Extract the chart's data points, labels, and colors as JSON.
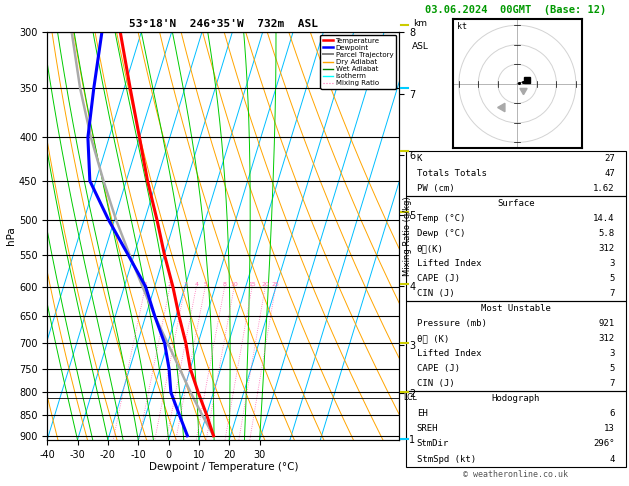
{
  "title_left": "53°18'N  246°35'W  732m  ASL",
  "title_right": "03.06.2024  00GMT  (Base: 12)",
  "xlabel": "Dewpoint / Temperature (°C)",
  "bg_color": "#ffffff",
  "pressure_levels": [
    300,
    350,
    400,
    450,
    500,
    550,
    600,
    650,
    700,
    750,
    800,
    850,
    900
  ],
  "pressure_ticks": [
    300,
    350,
    400,
    450,
    500,
    550,
    600,
    650,
    700,
    750,
    800,
    850,
    900
  ],
  "temp_ticks": [
    -40,
    -30,
    -20,
    -10,
    0,
    10,
    20,
    30
  ],
  "isotherm_color": "#00bfff",
  "dry_adiabat_color": "#ffa500",
  "wet_adiabat_color": "#00cc00",
  "mixing_ratio_color": "#ff69b4",
  "temperature_profile": {
    "pressure": [
      900,
      850,
      800,
      750,
      700,
      650,
      600,
      550,
      500,
      450,
      400,
      350,
      300
    ],
    "temp": [
      14.4,
      10.0,
      5.0,
      0.0,
      -4.0,
      -9.0,
      -14.0,
      -20.0,
      -26.0,
      -33.0,
      -40.0,
      -48.0,
      -57.0
    ],
    "color": "#ff0000",
    "linewidth": 2.2
  },
  "dewpoint_profile": {
    "pressure": [
      900,
      850,
      800,
      750,
      700,
      650,
      600,
      550,
      500,
      450,
      400,
      350,
      300
    ],
    "temp": [
      5.8,
      1.0,
      -4.0,
      -7.0,
      -11.0,
      -17.0,
      -23.0,
      -32.0,
      -42.0,
      -52.0,
      -57.0,
      -60.0,
      -63.0
    ],
    "color": "#0000ff",
    "linewidth": 2.2
  },
  "parcel_trajectory": {
    "pressure": [
      900,
      850,
      800,
      750,
      700,
      650,
      600,
      550,
      500,
      450,
      400,
      350,
      300
    ],
    "temp": [
      14.4,
      8.5,
      2.5,
      -3.5,
      -10.0,
      -17.0,
      -24.0,
      -31.5,
      -39.5,
      -47.5,
      -56.0,
      -64.5,
      -73.0
    ],
    "color": "#aaaaaa",
    "linewidth": 1.8
  },
  "lcl_pressure": 810,
  "km_ticks": [
    1,
    2,
    3,
    4,
    5,
    6,
    7,
    8
  ],
  "km_pressures": [
    907,
    800,
    700,
    595,
    490,
    415,
    350,
    295
  ],
  "mixing_ratio_values": [
    1,
    2,
    3,
    4,
    5,
    8,
    10,
    15,
    20,
    25
  ],
  "stats": {
    "K": 27,
    "Totals_Totals": 47,
    "PW_cm": 1.62,
    "Surface_Temp": 14.4,
    "Surface_Dewp": 5.8,
    "Surface_ThetaE": 312,
    "Surface_LI": 3,
    "Surface_CAPE": 5,
    "Surface_CIN": 7,
    "MU_Pressure": 921,
    "MU_ThetaE": 312,
    "MU_LI": 3,
    "MU_CAPE": 5,
    "MU_CIN": 7,
    "EH": 6,
    "SREH": 13,
    "StmDir": 296,
    "StmSpd": 4
  },
  "copyright": "© weatheronline.co.uk"
}
